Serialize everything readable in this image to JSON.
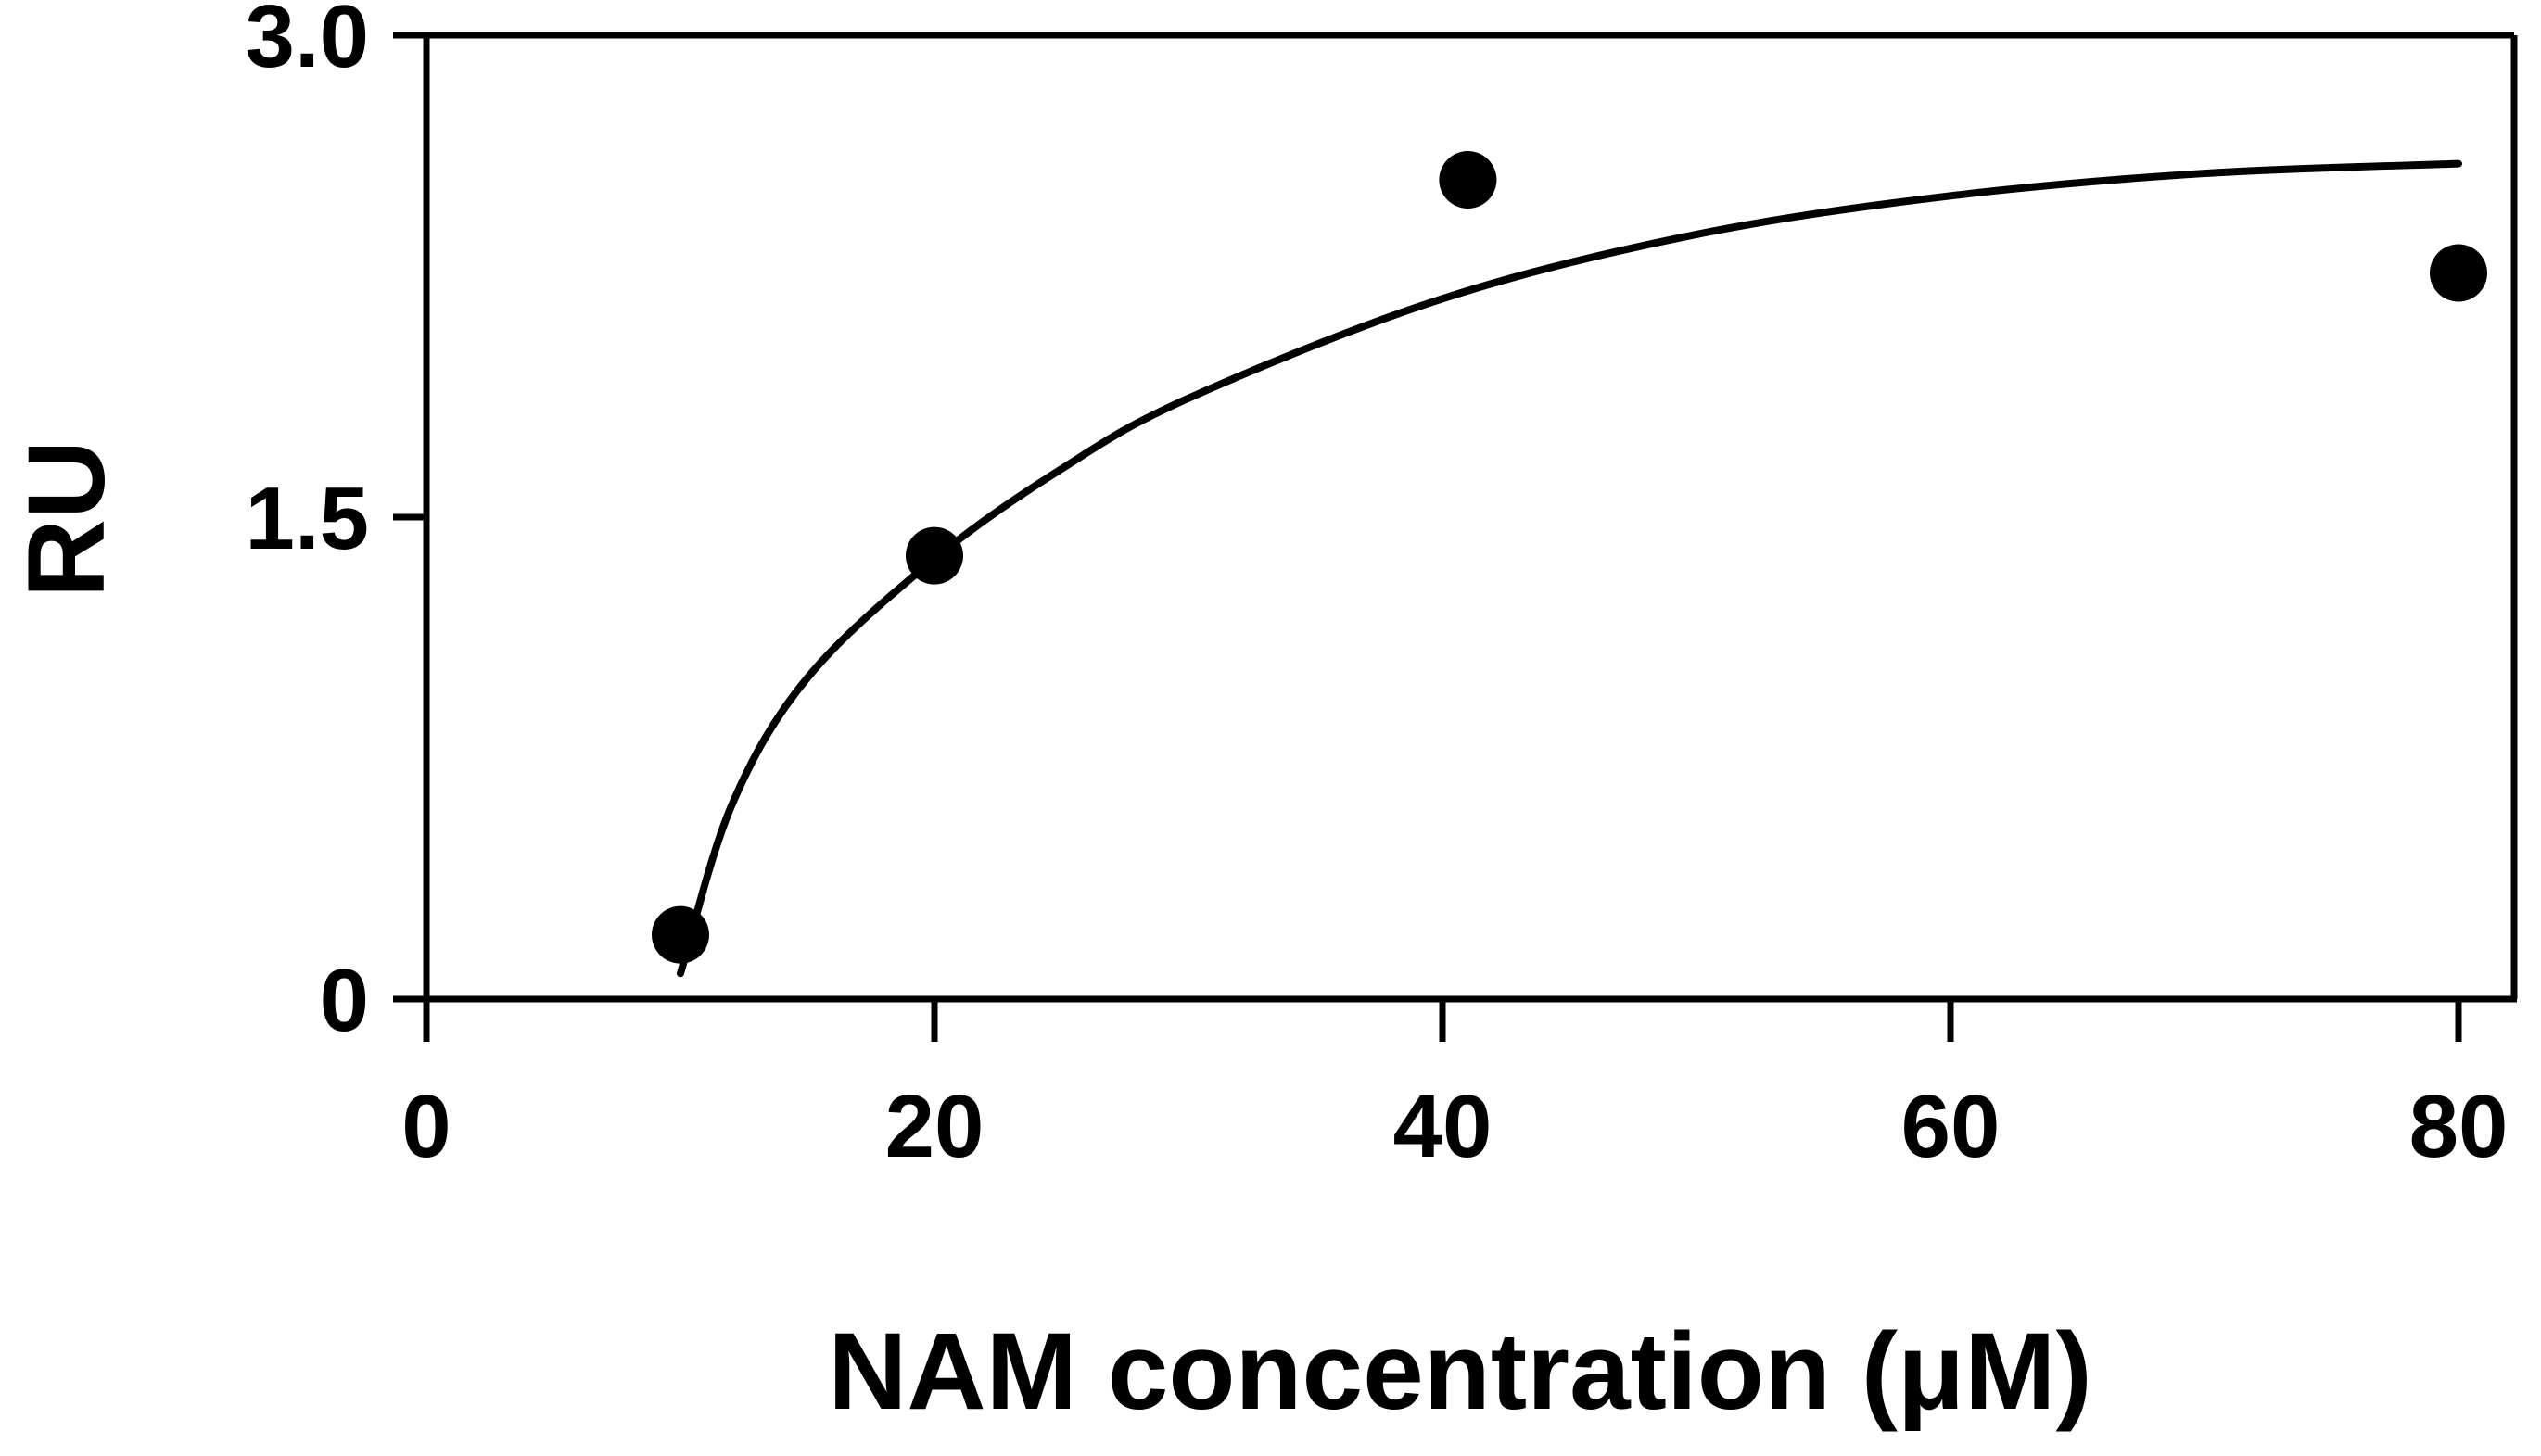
{
  "chart_data": {
    "type": "scatter",
    "title": "",
    "xlabel": "NAM concentration (μM)",
    "ylabel": "RU",
    "xlim": [
      0,
      82
    ],
    "ylim": [
      0,
      3.0
    ],
    "x_ticks": [
      0,
      20,
      40,
      60,
      80
    ],
    "x_tick_labels": [
      "0",
      "20",
      "40",
      "60",
      "80"
    ],
    "y_ticks": [
      0,
      1.5,
      3.0
    ],
    "y_tick_labels": [
      "0",
      "1.5",
      "3.0"
    ],
    "grid": false,
    "legend": "none",
    "series": [
      {
        "kind": "points",
        "x": [
          10,
          20,
          41,
          80
        ],
        "y": [
          0.2,
          1.38,
          2.55,
          2.26
        ]
      },
      {
        "kind": "fit-curve",
        "x": [
          10,
          12,
          15,
          20,
          25,
          30,
          40,
          50,
          60,
          70,
          80
        ],
        "y": [
          0.08,
          0.6,
          1.0,
          1.37,
          1.65,
          1.87,
          2.18,
          2.38,
          2.5,
          2.57,
          2.6
        ]
      }
    ],
    "colors": {
      "points": "#000000",
      "curve": "#000000",
      "axes": "#000000"
    }
  }
}
